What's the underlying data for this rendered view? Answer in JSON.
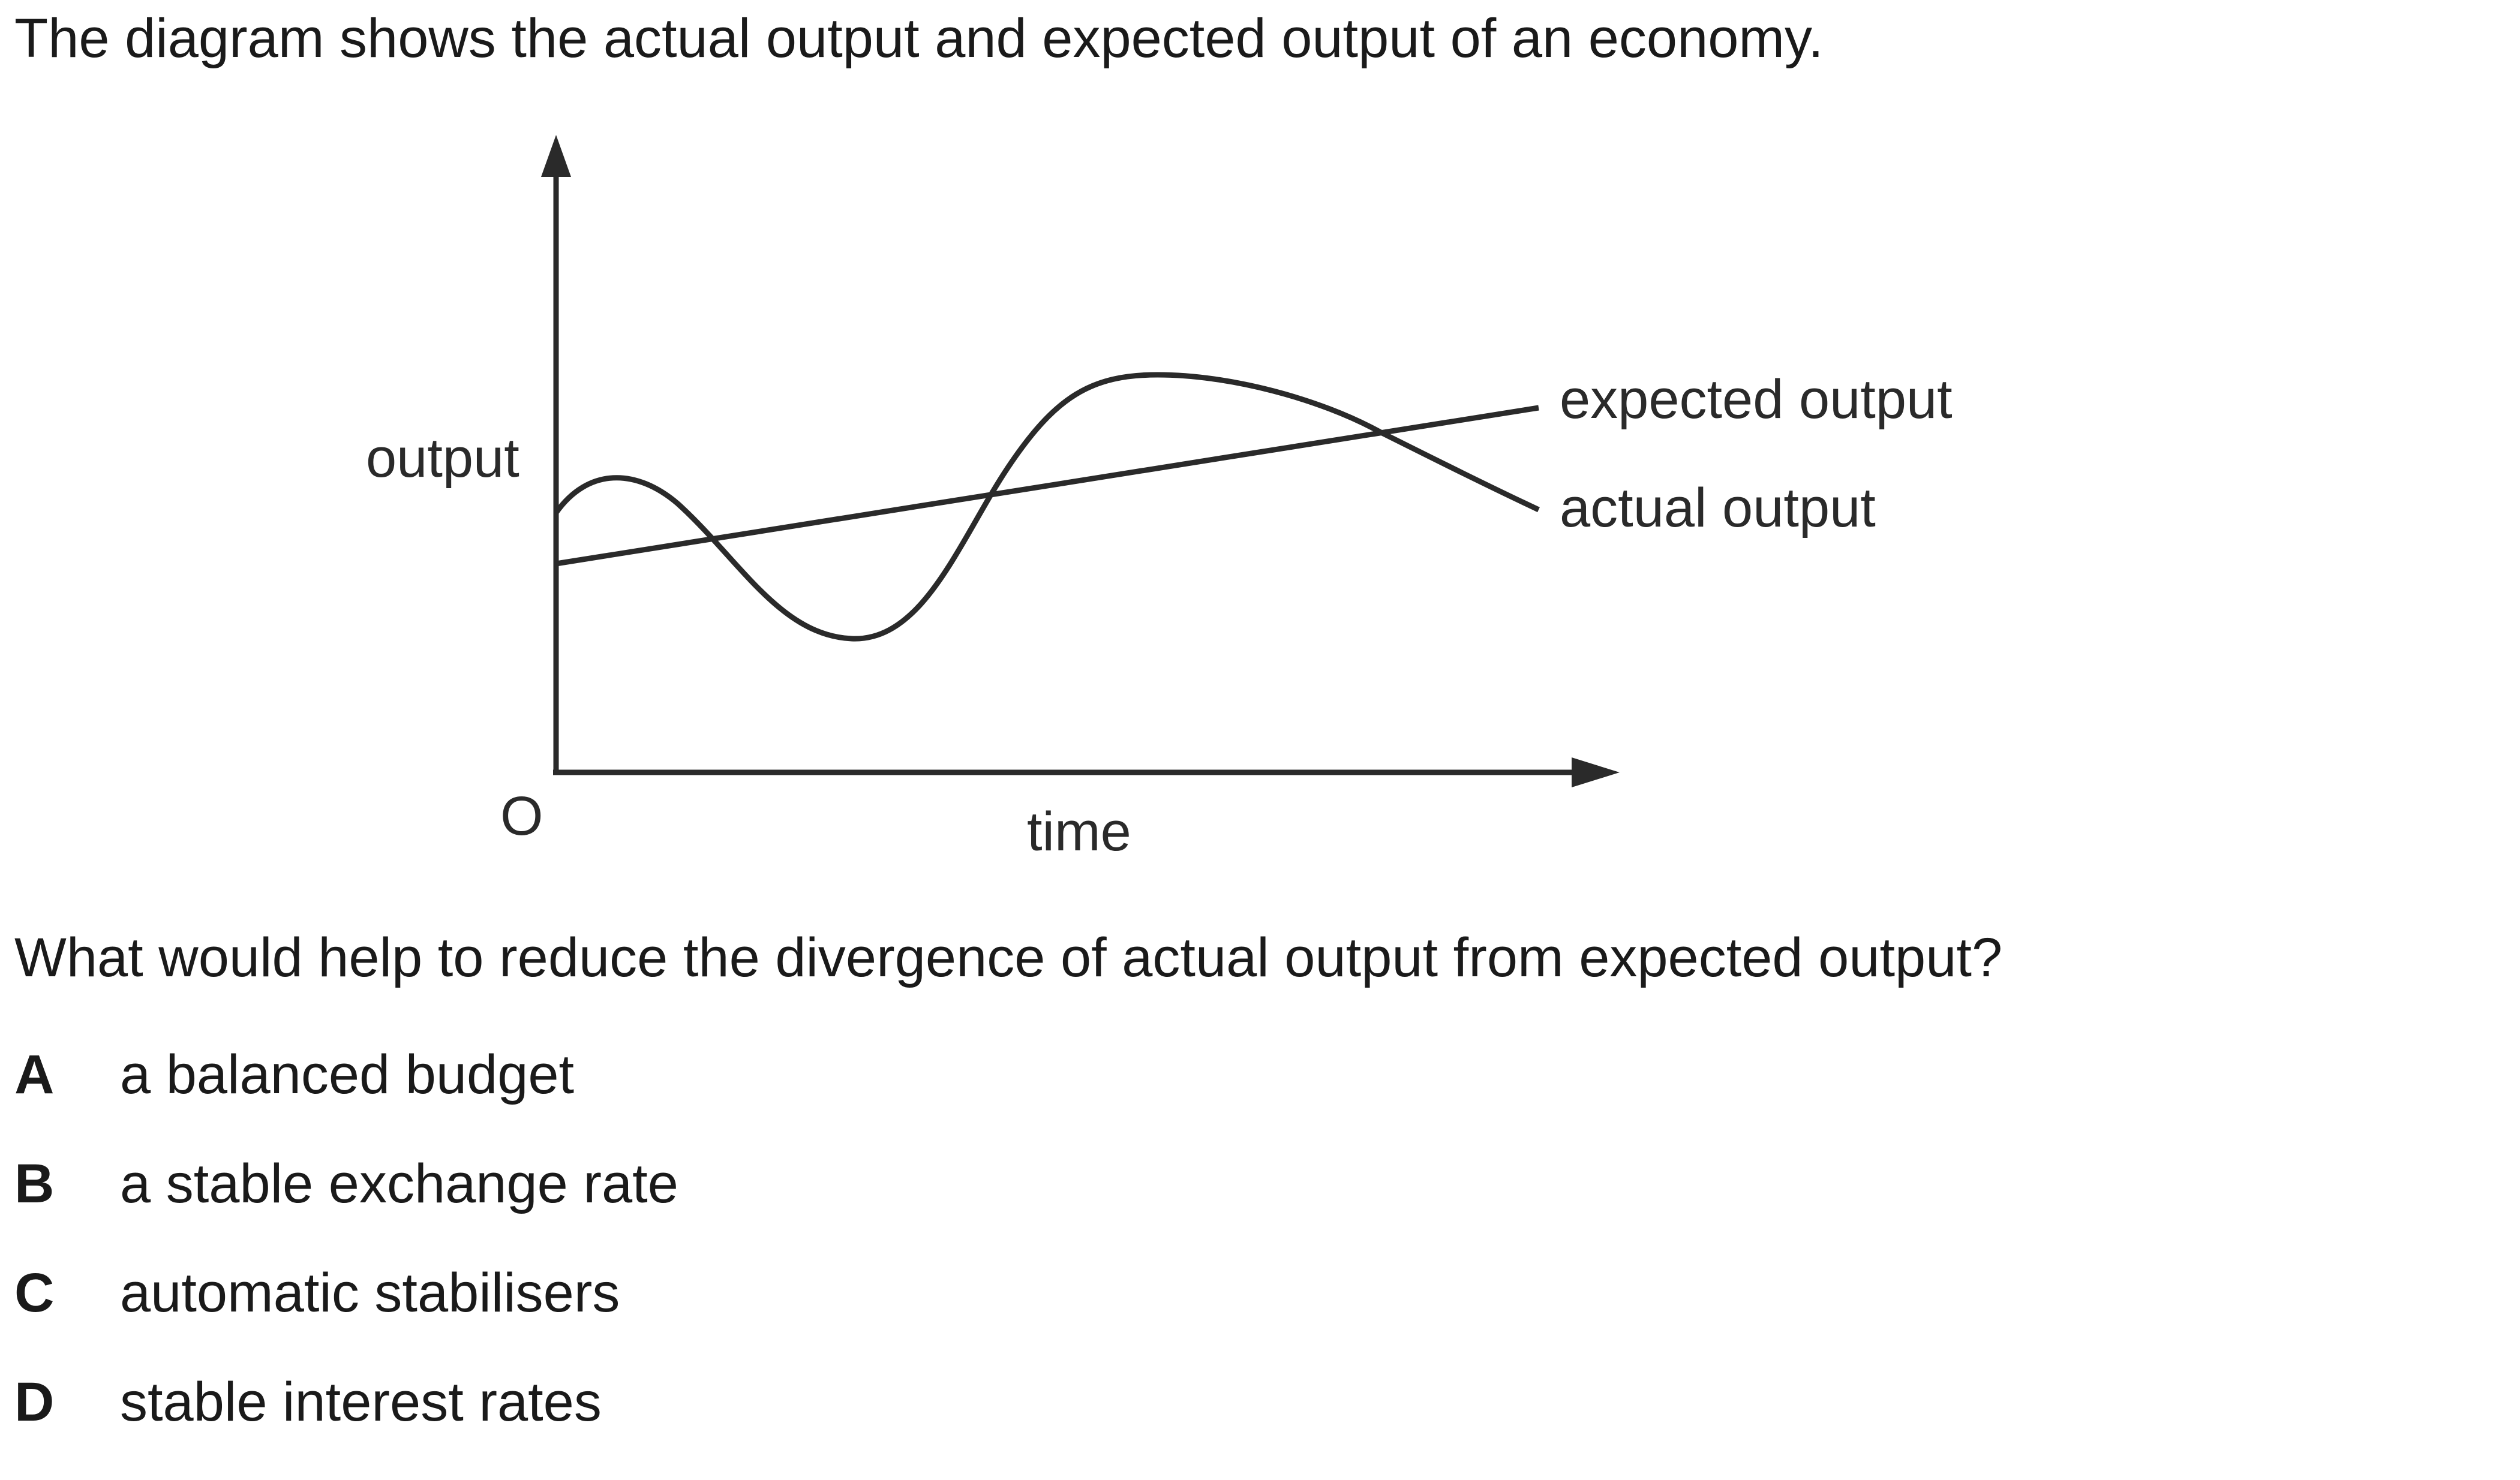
{
  "intro": "The diagram shows the actual output and expected output of an economy.",
  "diagram": {
    "y_axis_label": "output",
    "x_axis_label": "time",
    "origin_label": "O",
    "curves": {
      "expected": "expected output",
      "actual": "actual output"
    }
  },
  "question": "What would help to reduce the divergence of actual output from expected output?",
  "options": [
    {
      "letter": "A",
      "text": "a balanced budget"
    },
    {
      "letter": "B",
      "text": "a stable exchange rate"
    },
    {
      "letter": "C",
      "text": "automatic stabilisers"
    },
    {
      "letter": "D",
      "text": "stable interest rates"
    }
  ]
}
